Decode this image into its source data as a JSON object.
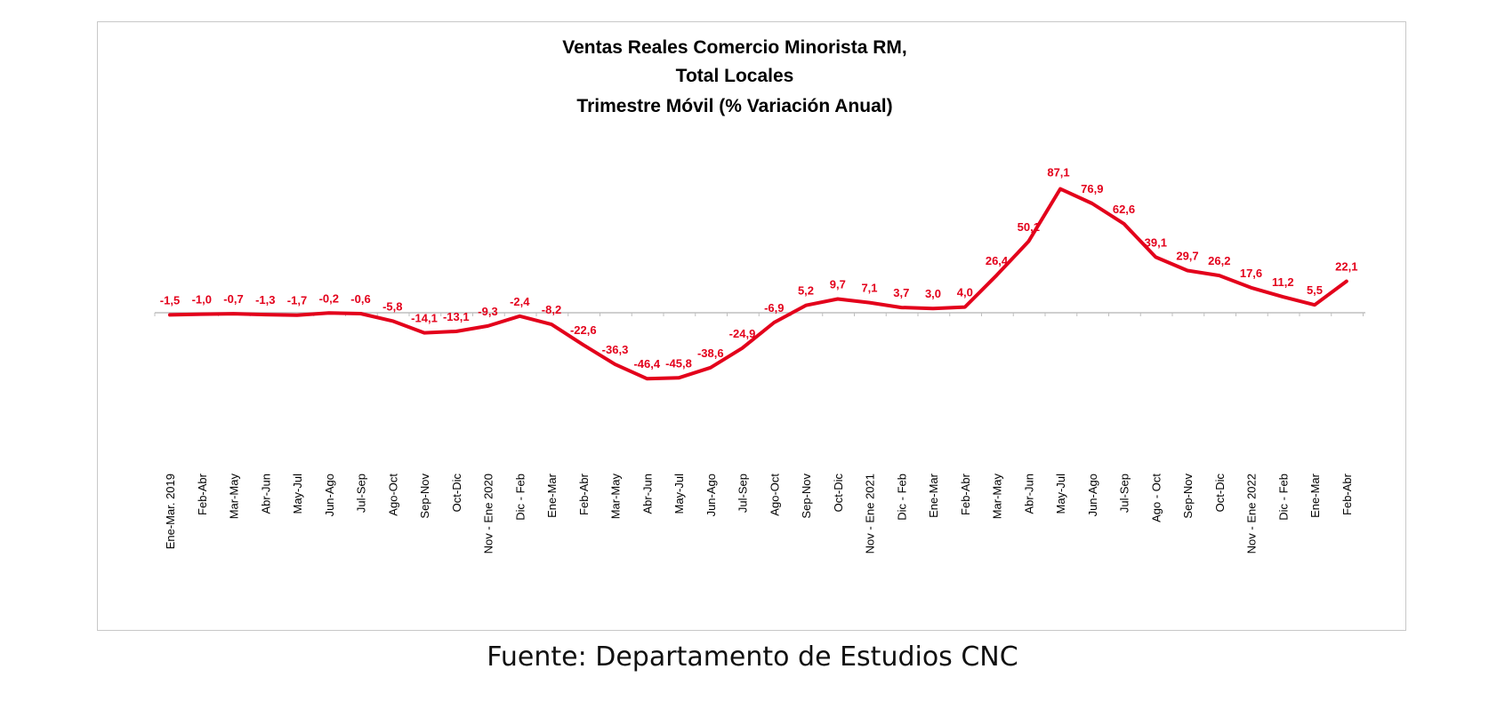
{
  "chart_data": {
    "type": "line",
    "title_lines": [
      "Ventas Reales Comercio Minorista RM,",
      "Total Locales",
      "Trimestre Móvil (% Variación Anual)"
    ],
    "xlabel": "",
    "ylabel": "",
    "categories": [
      "Ene-Mar. 2019",
      "Feb-Abr",
      "Mar-May",
      "Abr-Jun",
      "May-Jul",
      "Jun-Ago",
      "Jul-Sep",
      "Ago-Oct",
      "Sep-Nov",
      "Oct-Dic",
      "Nov - Ene 2020",
      "Dic - Feb",
      "Ene-Mar",
      "Feb-Abr",
      "Mar-May",
      "Abr-Jun",
      "May-Jul",
      "Jun-Ago",
      "Jul-Sep",
      "Ago-Oct",
      "Sep-Nov",
      "Oct-Dic",
      "Nov - Ene 2021",
      "Dic - Feb",
      "Ene-Mar",
      "Feb-Abr",
      "Mar-May",
      "Abr-Jun",
      "May-Jul",
      "Jun-Ago",
      "Jul-Sep",
      "Ago - Oct",
      "Sep-Nov",
      "Oct-Dic",
      "Nov - Ene 2022",
      "Dic - Feb",
      "Ene-Mar",
      "Feb-Abr"
    ],
    "series": [
      {
        "values": [
          -1.5,
          -1.0,
          -0.7,
          -1.3,
          -1.7,
          -0.2,
          -0.6,
          -5.8,
          -14.1,
          -13.1,
          -9.3,
          -2.4,
          -8.2,
          -22.6,
          -36.3,
          -46.4,
          -45.8,
          -38.6,
          -24.9,
          -6.9,
          5.2,
          9.7,
          7.1,
          3.7,
          3.0,
          4.0,
          26.4,
          50.1,
          87.1,
          76.9,
          62.6,
          39.1,
          29.7,
          26.2,
          17.6,
          11.2,
          5.5,
          22.1
        ],
        "labels": [
          "-1,5",
          "-1,0",
          "-0,7",
          "-1,3",
          "-1,7",
          "-0,2",
          "-0,6",
          "-5,8",
          "-14,1",
          "-13,1",
          "-9,3",
          "-2,4",
          "-8,2",
          "-22,6",
          "-36,3",
          "-46,4",
          "-45,8",
          "-38,6",
          "-24,9",
          "-6,9",
          "5,2",
          "9,7",
          "7,1",
          "3,7",
          "3,0",
          "4,0",
          "26,4",
          "50,1",
          "87,1",
          "76,9",
          "62,6",
          "39,1",
          "29,7",
          "26,2",
          "17,6",
          "11,2",
          "5,5",
          "22,1"
        ],
        "color": "#e3001b"
      }
    ],
    "ylim": [
      -90,
      100
    ],
    "grid": false,
    "legend": "none",
    "axis_color": "#bfbfbf",
    "label_color": "#e3001b"
  },
  "source": "Fuente: Departamento de Estudios CNC"
}
